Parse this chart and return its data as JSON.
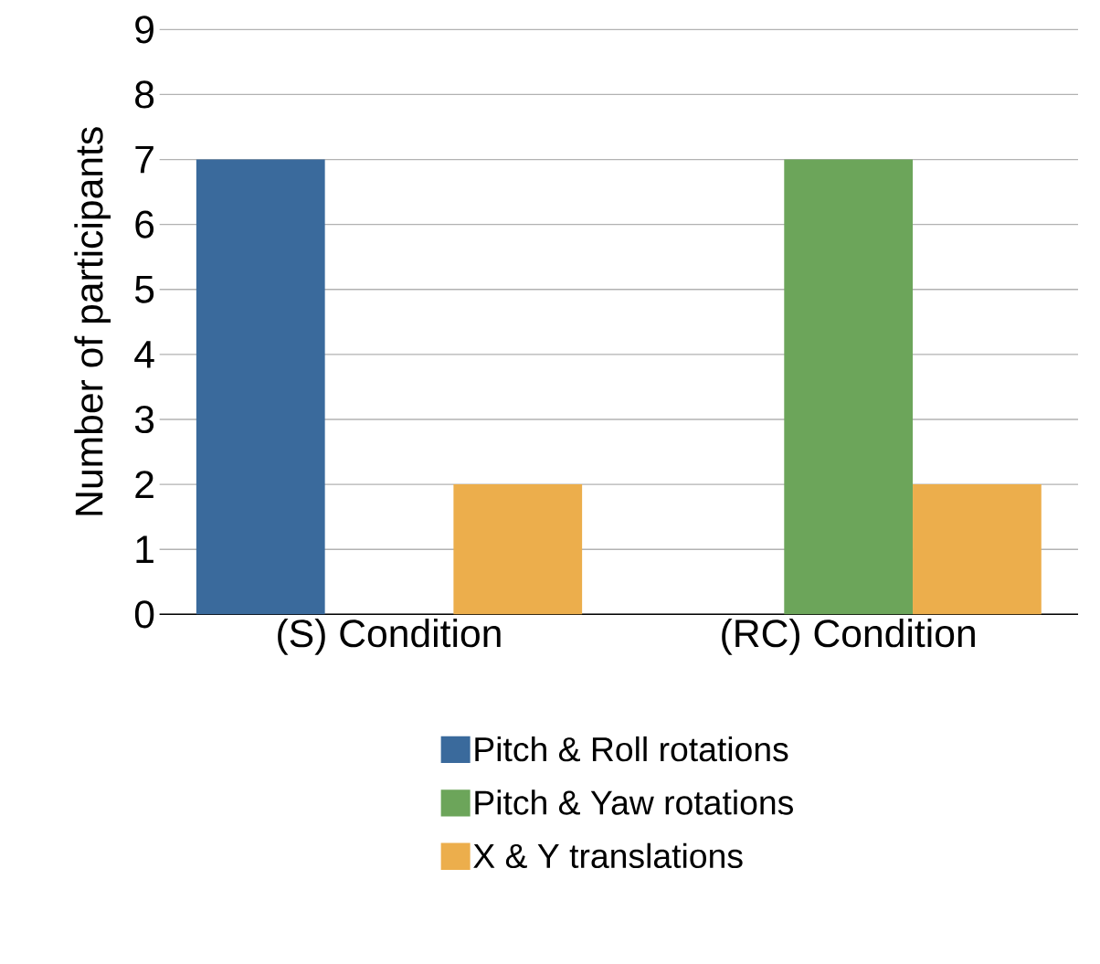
{
  "chart_data": {
    "type": "bar",
    "ylabel": "Number of participants",
    "categories": [
      "(S) Condition",
      "(RC) Condition"
    ],
    "series": [
      {
        "name": "Pitch & Roll rotations",
        "color": "#3a6a9c",
        "values": [
          7,
          0
        ]
      },
      {
        "name": "Pitch & Yaw rotations",
        "color": "#6ca55a",
        "values": [
          0,
          7
        ]
      },
      {
        "name": "X & Y translations",
        "color": "#ecae4c",
        "values": [
          2,
          2
        ]
      }
    ],
    "ylim": [
      0,
      9
    ],
    "yticks": [
      0,
      1,
      2,
      3,
      4,
      5,
      6,
      7,
      8,
      9
    ],
    "grid": "y",
    "legend": "bottom"
  }
}
